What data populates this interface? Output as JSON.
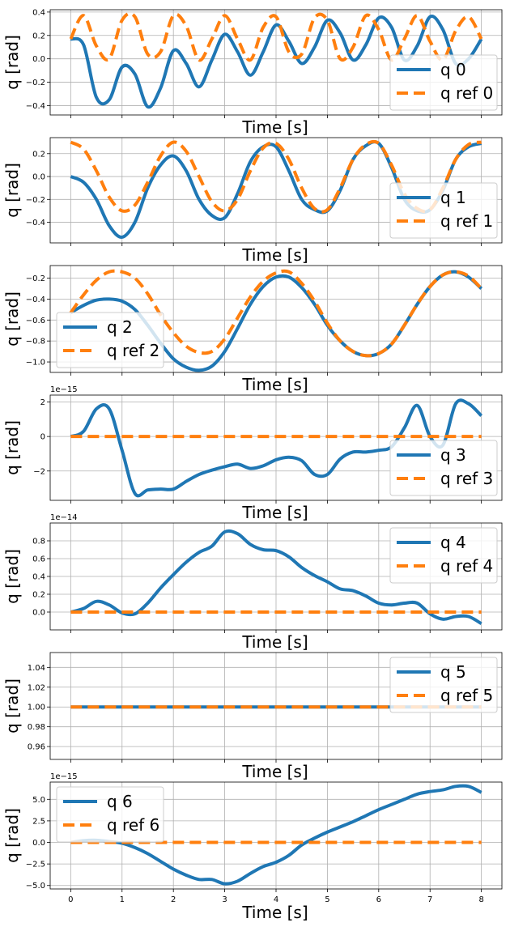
{
  "chart_data": [
    {
      "type": "line",
      "xlabel": "Time [s]",
      "ylabel": "q [rad]",
      "xlim": [
        -0.4,
        8.4
      ],
      "ylim": [
        -0.48,
        0.42
      ],
      "yticks": [
        -0.4,
        -0.2,
        0.0,
        0.2,
        0.4
      ],
      "ytick_labels": [
        "−0.4",
        "−0.2",
        "0.0",
        "0.2",
        "0.4"
      ],
      "grid": true,
      "legend_placement": "lower-right",
      "x": [
        0,
        0.25,
        0.5,
        0.75,
        1,
        1.25,
        1.5,
        1.75,
        2,
        2.25,
        2.5,
        2.75,
        3,
        3.25,
        3.5,
        3.75,
        4,
        4.25,
        4.5,
        4.75,
        5,
        5.25,
        5.5,
        5.75,
        6,
        6.25,
        6.5,
        6.75,
        7,
        7.25,
        7.5,
        7.75,
        8
      ],
      "series": [
        {
          "name": "q 0",
          "style": "solid",
          "values": [
            0.17,
            0.12,
            -0.33,
            -0.35,
            -0.07,
            -0.13,
            -0.41,
            -0.25,
            0.07,
            -0.04,
            -0.24,
            -0.01,
            0.21,
            0.06,
            -0.14,
            0.06,
            0.29,
            0.15,
            -0.04,
            0.1,
            0.33,
            0.22,
            -0.01,
            0.12,
            0.35,
            0.27,
            -0.01,
            0.11,
            0.36,
            0.25,
            -0.04,
            0.0,
            0.17
          ]
        },
        {
          "name": "q ref 0",
          "style": "dashed",
          "values": [
            0.17,
            0.37,
            0.11,
            0.0,
            0.33,
            0.36,
            0.04,
            0.06,
            0.37,
            0.28,
            -0.01,
            0.17,
            0.37,
            0.17,
            -0.01,
            0.27,
            0.36,
            0.06,
            0.04,
            0.35,
            0.33,
            0.0,
            0.1,
            0.37,
            0.25,
            -0.01,
            0.17,
            0.37,
            0.15,
            -0.01,
            0.24,
            0.36,
            0.17
          ]
        }
      ]
    },
    {
      "type": "line",
      "xlabel": "Time [s]",
      "ylabel": "q [rad]",
      "xlim": [
        -0.4,
        8.4
      ],
      "ylim": [
        -0.58,
        0.34
      ],
      "yticks": [
        -0.4,
        -0.2,
        0.0,
        0.2
      ],
      "ytick_labels": [
        "−0.4",
        "−0.2",
        "0.0",
        "0.2"
      ],
      "grid": true,
      "legend_placement": "lower-right",
      "x": [
        0,
        0.25,
        0.5,
        0.75,
        1,
        1.25,
        1.5,
        1.75,
        2,
        2.25,
        2.5,
        2.75,
        3,
        3.25,
        3.5,
        3.75,
        4,
        4.25,
        4.5,
        4.75,
        5,
        5.25,
        5.5,
        5.75,
        6,
        6.25,
        6.5,
        6.75,
        7,
        7.25,
        7.5,
        7.75,
        8
      ],
      "series": [
        {
          "name": "q 1",
          "style": "solid",
          "values": [
            0.0,
            -0.05,
            -0.2,
            -0.43,
            -0.53,
            -0.4,
            -0.1,
            0.1,
            0.18,
            0.05,
            -0.2,
            -0.34,
            -0.36,
            -0.15,
            0.13,
            0.26,
            0.26,
            0.05,
            -0.2,
            -0.29,
            -0.3,
            -0.12,
            0.15,
            0.27,
            0.29,
            0.08,
            -0.2,
            -0.3,
            -0.29,
            -0.12,
            0.15,
            0.26,
            0.29
          ]
        },
        {
          "name": "q ref 1",
          "style": "dashed",
          "values": [
            0.3,
            0.24,
            0.05,
            -0.18,
            -0.3,
            -0.25,
            -0.05,
            0.18,
            0.3,
            0.22,
            0.0,
            -0.22,
            -0.3,
            -0.2,
            0.05,
            0.25,
            0.29,
            0.15,
            -0.1,
            -0.28,
            -0.29,
            -0.1,
            0.15,
            0.28,
            0.29,
            0.1,
            -0.15,
            -0.28,
            -0.29,
            -0.1,
            0.15,
            0.28,
            0.3
          ]
        }
      ]
    },
    {
      "type": "line",
      "xlabel": "Time [s]",
      "ylabel": "q [rad]",
      "xlim": [
        -0.4,
        8.4
      ],
      "ylim": [
        -1.1,
        -0.08
      ],
      "yticks": [
        -1.0,
        -0.8,
        -0.6,
        -0.4,
        -0.2
      ],
      "ytick_labels": [
        "−1.0",
        "−0.8",
        "−0.6",
        "−0.4",
        "−0.2"
      ],
      "grid": true,
      "legend_placement": "lower-left",
      "x": [
        0,
        0.25,
        0.5,
        0.75,
        1,
        1.25,
        1.5,
        1.75,
        2,
        2.25,
        2.5,
        2.75,
        3,
        3.25,
        3.5,
        3.75,
        4,
        4.25,
        4.5,
        4.75,
        5,
        5.25,
        5.5,
        5.75,
        6,
        6.25,
        6.5,
        6.75,
        7,
        7.25,
        7.5,
        7.75,
        8
      ],
      "series": [
        {
          "name": "q 2",
          "style": "solid",
          "values": [
            -0.53,
            -0.46,
            -0.41,
            -0.4,
            -0.42,
            -0.5,
            -0.65,
            -0.82,
            -0.97,
            -1.05,
            -1.08,
            -1.04,
            -0.9,
            -0.68,
            -0.45,
            -0.28,
            -0.19,
            -0.19,
            -0.29,
            -0.45,
            -0.65,
            -0.8,
            -0.9,
            -0.94,
            -0.92,
            -0.83,
            -0.65,
            -0.45,
            -0.28,
            -0.17,
            -0.14,
            -0.19,
            -0.3
          ]
        },
        {
          "name": "q ref 2",
          "style": "dashed",
          "values": [
            -0.53,
            -0.36,
            -0.22,
            -0.14,
            -0.14,
            -0.2,
            -0.35,
            -0.55,
            -0.72,
            -0.85,
            -0.91,
            -0.9,
            -0.78,
            -0.58,
            -0.38,
            -0.23,
            -0.15,
            -0.14,
            -0.25,
            -0.42,
            -0.63,
            -0.8,
            -0.9,
            -0.94,
            -0.92,
            -0.83,
            -0.65,
            -0.45,
            -0.28,
            -0.17,
            -0.14,
            -0.18,
            -0.3
          ]
        }
      ]
    },
    {
      "type": "line",
      "xlabel": "Time [s]",
      "ylabel": "q [rad]",
      "scale_label": "1e−15",
      "xlim": [
        -0.4,
        8.4
      ],
      "ylim": [
        -3.7,
        2.4
      ],
      "yticks": [
        -2,
        0,
        2
      ],
      "ytick_labels": [
        "−2",
        "0",
        "2"
      ],
      "grid": true,
      "legend_placement": "lower-right",
      "x": [
        0,
        0.25,
        0.5,
        0.75,
        1,
        1.25,
        1.5,
        1.75,
        2,
        2.25,
        2.5,
        2.75,
        3,
        3.25,
        3.5,
        3.75,
        4,
        4.25,
        4.5,
        4.75,
        5,
        5.25,
        5.5,
        5.75,
        6,
        6.25,
        6.5,
        6.75,
        7,
        7.25,
        7.5,
        7.75,
        8
      ],
      "series": [
        {
          "name": "q 3",
          "style": "solid",
          "values": [
            0.0,
            0.3,
            1.6,
            1.6,
            -0.8,
            -3.3,
            -3.1,
            -3.05,
            -3.05,
            -2.6,
            -2.2,
            -1.95,
            -1.75,
            -1.6,
            -1.85,
            -1.7,
            -1.35,
            -1.2,
            -1.4,
            -2.2,
            -2.2,
            -1.3,
            -0.9,
            -0.9,
            -0.8,
            -0.6,
            0.5,
            1.8,
            0.0,
            -0.5,
            1.9,
            1.9,
            1.2
          ]
        },
        {
          "name": "q ref 3",
          "style": "dashed",
          "values": [
            0,
            0,
            0,
            0,
            0,
            0,
            0,
            0,
            0,
            0,
            0,
            0,
            0,
            0,
            0,
            0,
            0,
            0,
            0,
            0,
            0,
            0,
            0,
            0,
            0,
            0,
            0,
            0,
            0,
            0,
            0,
            0,
            0
          ]
        }
      ]
    },
    {
      "type": "line",
      "xlabel": "Time [s]",
      "ylabel": "q [rad]",
      "scale_label": "1e−14",
      "xlim": [
        -0.4,
        8.4
      ],
      "ylim": [
        -0.2,
        1.0
      ],
      "yticks": [
        0.0,
        0.2,
        0.4,
        0.6,
        0.8
      ],
      "ytick_labels": [
        "0.0",
        "0.2",
        "0.4",
        "0.6",
        "0.8"
      ],
      "grid": true,
      "legend_placement": "upper-right",
      "x": [
        0,
        0.25,
        0.5,
        0.75,
        1,
        1.25,
        1.5,
        1.75,
        2,
        2.25,
        2.5,
        2.75,
        3,
        3.25,
        3.5,
        3.75,
        4,
        4.25,
        4.5,
        4.75,
        5,
        5.25,
        5.5,
        5.75,
        6,
        6.25,
        6.5,
        6.75,
        7,
        7.25,
        7.5,
        7.75,
        8
      ],
      "series": [
        {
          "name": "q 4",
          "style": "solid",
          "values": [
            0.0,
            0.04,
            0.12,
            0.08,
            -0.01,
            -0.02,
            0.1,
            0.27,
            0.42,
            0.56,
            0.67,
            0.74,
            0.9,
            0.88,
            0.76,
            0.7,
            0.69,
            0.62,
            0.5,
            0.41,
            0.34,
            0.26,
            0.24,
            0.18,
            0.1,
            0.08,
            0.1,
            0.1,
            -0.02,
            -0.08,
            -0.05,
            -0.05,
            -0.13
          ]
        },
        {
          "name": "q ref 4",
          "style": "dashed",
          "values": [
            0,
            0,
            0,
            0,
            0,
            0,
            0,
            0,
            0,
            0,
            0,
            0,
            0,
            0,
            0,
            0,
            0,
            0,
            0,
            0,
            0,
            0,
            0,
            0,
            0,
            0,
            0,
            0,
            0,
            0,
            0,
            0,
            0
          ]
        }
      ]
    },
    {
      "type": "line",
      "xlabel": "Time [s]",
      "ylabel": "q [rad]",
      "xlim": [
        -0.4,
        8.4
      ],
      "ylim": [
        0.947,
        1.055
      ],
      "yticks": [
        0.96,
        0.98,
        1.0,
        1.02,
        1.04
      ],
      "ytick_labels": [
        "0.96",
        "0.98",
        "1.00",
        "1.02",
        "1.04"
      ],
      "grid": true,
      "legend_placement": "upper-right",
      "x": [
        0,
        8
      ],
      "series": [
        {
          "name": "q 5",
          "style": "solid",
          "values": [
            1.0,
            1.0
          ]
        },
        {
          "name": "q ref 5",
          "style": "dashed",
          "values": [
            1.0,
            1.0
          ]
        }
      ]
    },
    {
      "type": "line",
      "xlabel": "Time [s]",
      "ylabel": "q [rad]",
      "scale_label": "1e−15",
      "xlim": [
        -0.4,
        8.4
      ],
      "ylim": [
        -5.4,
        7.0
      ],
      "yticks": [
        -5.0,
        -2.5,
        0.0,
        2.5,
        5.0
      ],
      "ytick_labels": [
        "−5.0",
        "−2.5",
        "0.0",
        "2.5",
        "5.0"
      ],
      "xticks": [
        0,
        1,
        2,
        3,
        4,
        5,
        6,
        7,
        8
      ],
      "xtick_labels": [
        "0",
        "1",
        "2",
        "3",
        "4",
        "5",
        "6",
        "7",
        "8"
      ],
      "grid": true,
      "legend_placement": "upper-left",
      "x": [
        0,
        0.25,
        0.5,
        0.75,
        1,
        1.25,
        1.5,
        1.75,
        2,
        2.25,
        2.5,
        2.75,
        3,
        3.25,
        3.5,
        3.75,
        4,
        4.25,
        4.5,
        4.75,
        5,
        5.25,
        5.5,
        5.75,
        6,
        6.25,
        6.5,
        6.75,
        7,
        7.25,
        7.5,
        7.75,
        8
      ],
      "series": [
        {
          "name": "q 6",
          "style": "solid",
          "values": [
            0.0,
            0.2,
            0.25,
            0.1,
            -0.1,
            -0.6,
            -1.3,
            -2.2,
            -3.1,
            -3.8,
            -4.3,
            -4.3,
            -4.8,
            -4.5,
            -3.6,
            -2.8,
            -2.3,
            -1.5,
            -0.3,
            0.5,
            1.2,
            1.8,
            2.4,
            3.1,
            3.8,
            4.4,
            5.0,
            5.6,
            5.9,
            6.1,
            6.5,
            6.5,
            5.8
          ]
        },
        {
          "name": "q ref 6",
          "style": "dashed",
          "values": [
            0,
            0,
            0,
            0,
            0,
            0,
            0,
            0,
            0,
            0,
            0,
            0,
            0,
            0,
            0,
            0,
            0,
            0,
            0,
            0,
            0,
            0,
            0,
            0,
            0,
            0,
            0,
            0,
            0,
            0,
            0,
            0,
            0
          ]
        }
      ]
    }
  ],
  "colors": {
    "solid": "#1f77b4",
    "dashed": "#ff7f0e",
    "grid": "#b0b0b0",
    "legend_border": "#cccccc"
  }
}
